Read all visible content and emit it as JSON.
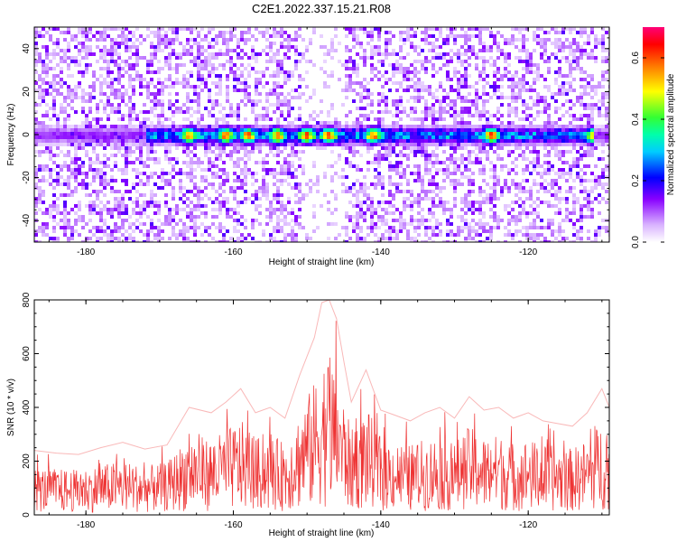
{
  "figure_title": "C2E1.2022.337.15.21.R08",
  "chart_data": [
    {
      "type": "heatmap",
      "xlabel": "Height of straight line (km)",
      "ylabel": "Frequency (Hz)",
      "xlim": [
        -187,
        -109
      ],
      "ylim": [
        -50,
        50
      ],
      "xticks": [
        -180,
        -160,
        -140,
        -120
      ],
      "yticks": [
        -40,
        -20,
        0,
        20,
        40
      ],
      "colorbar": {
        "label": "Normalized spectral amplitude",
        "range": [
          0,
          0.7
        ],
        "ticks": [
          "0.0",
          "0.2",
          "0.4",
          "0.6"
        ],
        "tick_values": [
          0.0,
          0.2,
          0.4,
          0.6
        ],
        "colormap": "rainbow (white → violet → blue → cyan → green → yellow → red → magenta)"
      },
      "features": {
        "signal_band_frequency_hz": [
          -3,
          2
        ],
        "signal_band_x_range_km": [
          -172,
          -111
        ],
        "strongest_patches_km": [
          -166,
          -161,
          -158,
          -154,
          -150,
          -147,
          -141,
          -125,
          -111
        ],
        "peak_amplitude": 0.65,
        "quiet_vertical_gap_km": [
          -151,
          -145
        ]
      },
      "grid": false
    },
    {
      "type": "line",
      "xlabel": "Height of straight line (km)",
      "ylabel": "SNR (10 * v/v)",
      "xlim": [
        -187,
        -109
      ],
      "ylim": [
        0,
        800
      ],
      "xticks": [
        -180,
        -160,
        -140,
        -120
      ],
      "yticks": [
        0,
        200,
        400,
        600,
        800
      ],
      "color": "#ee3333",
      "series": [
        {
          "x": [
            -187,
            -184,
            -181,
            -178,
            -175,
            -172,
            -169,
            -166,
            -163,
            -161,
            -159,
            -157,
            -155,
            -153,
            -151,
            -149,
            -148,
            -147,
            -146,
            -145,
            -144,
            -142,
            -140,
            -138,
            -136,
            -134,
            -132,
            -130,
            -128,
            -126,
            -124,
            -122,
            -120,
            -118,
            -116,
            -114,
            -112,
            -110,
            -109
          ],
          "values": [
            240,
            230,
            225,
            250,
            270,
            245,
            260,
            400,
            380,
            420,
            470,
            380,
            400,
            360,
            520,
            660,
            790,
            800,
            730,
            570,
            420,
            540,
            390,
            370,
            350,
            380,
            400,
            360,
            440,
            390,
            400,
            360,
            380,
            350,
            340,
            330,
            380,
            470,
            400
          ]
        }
      ],
      "grid": false
    }
  ]
}
